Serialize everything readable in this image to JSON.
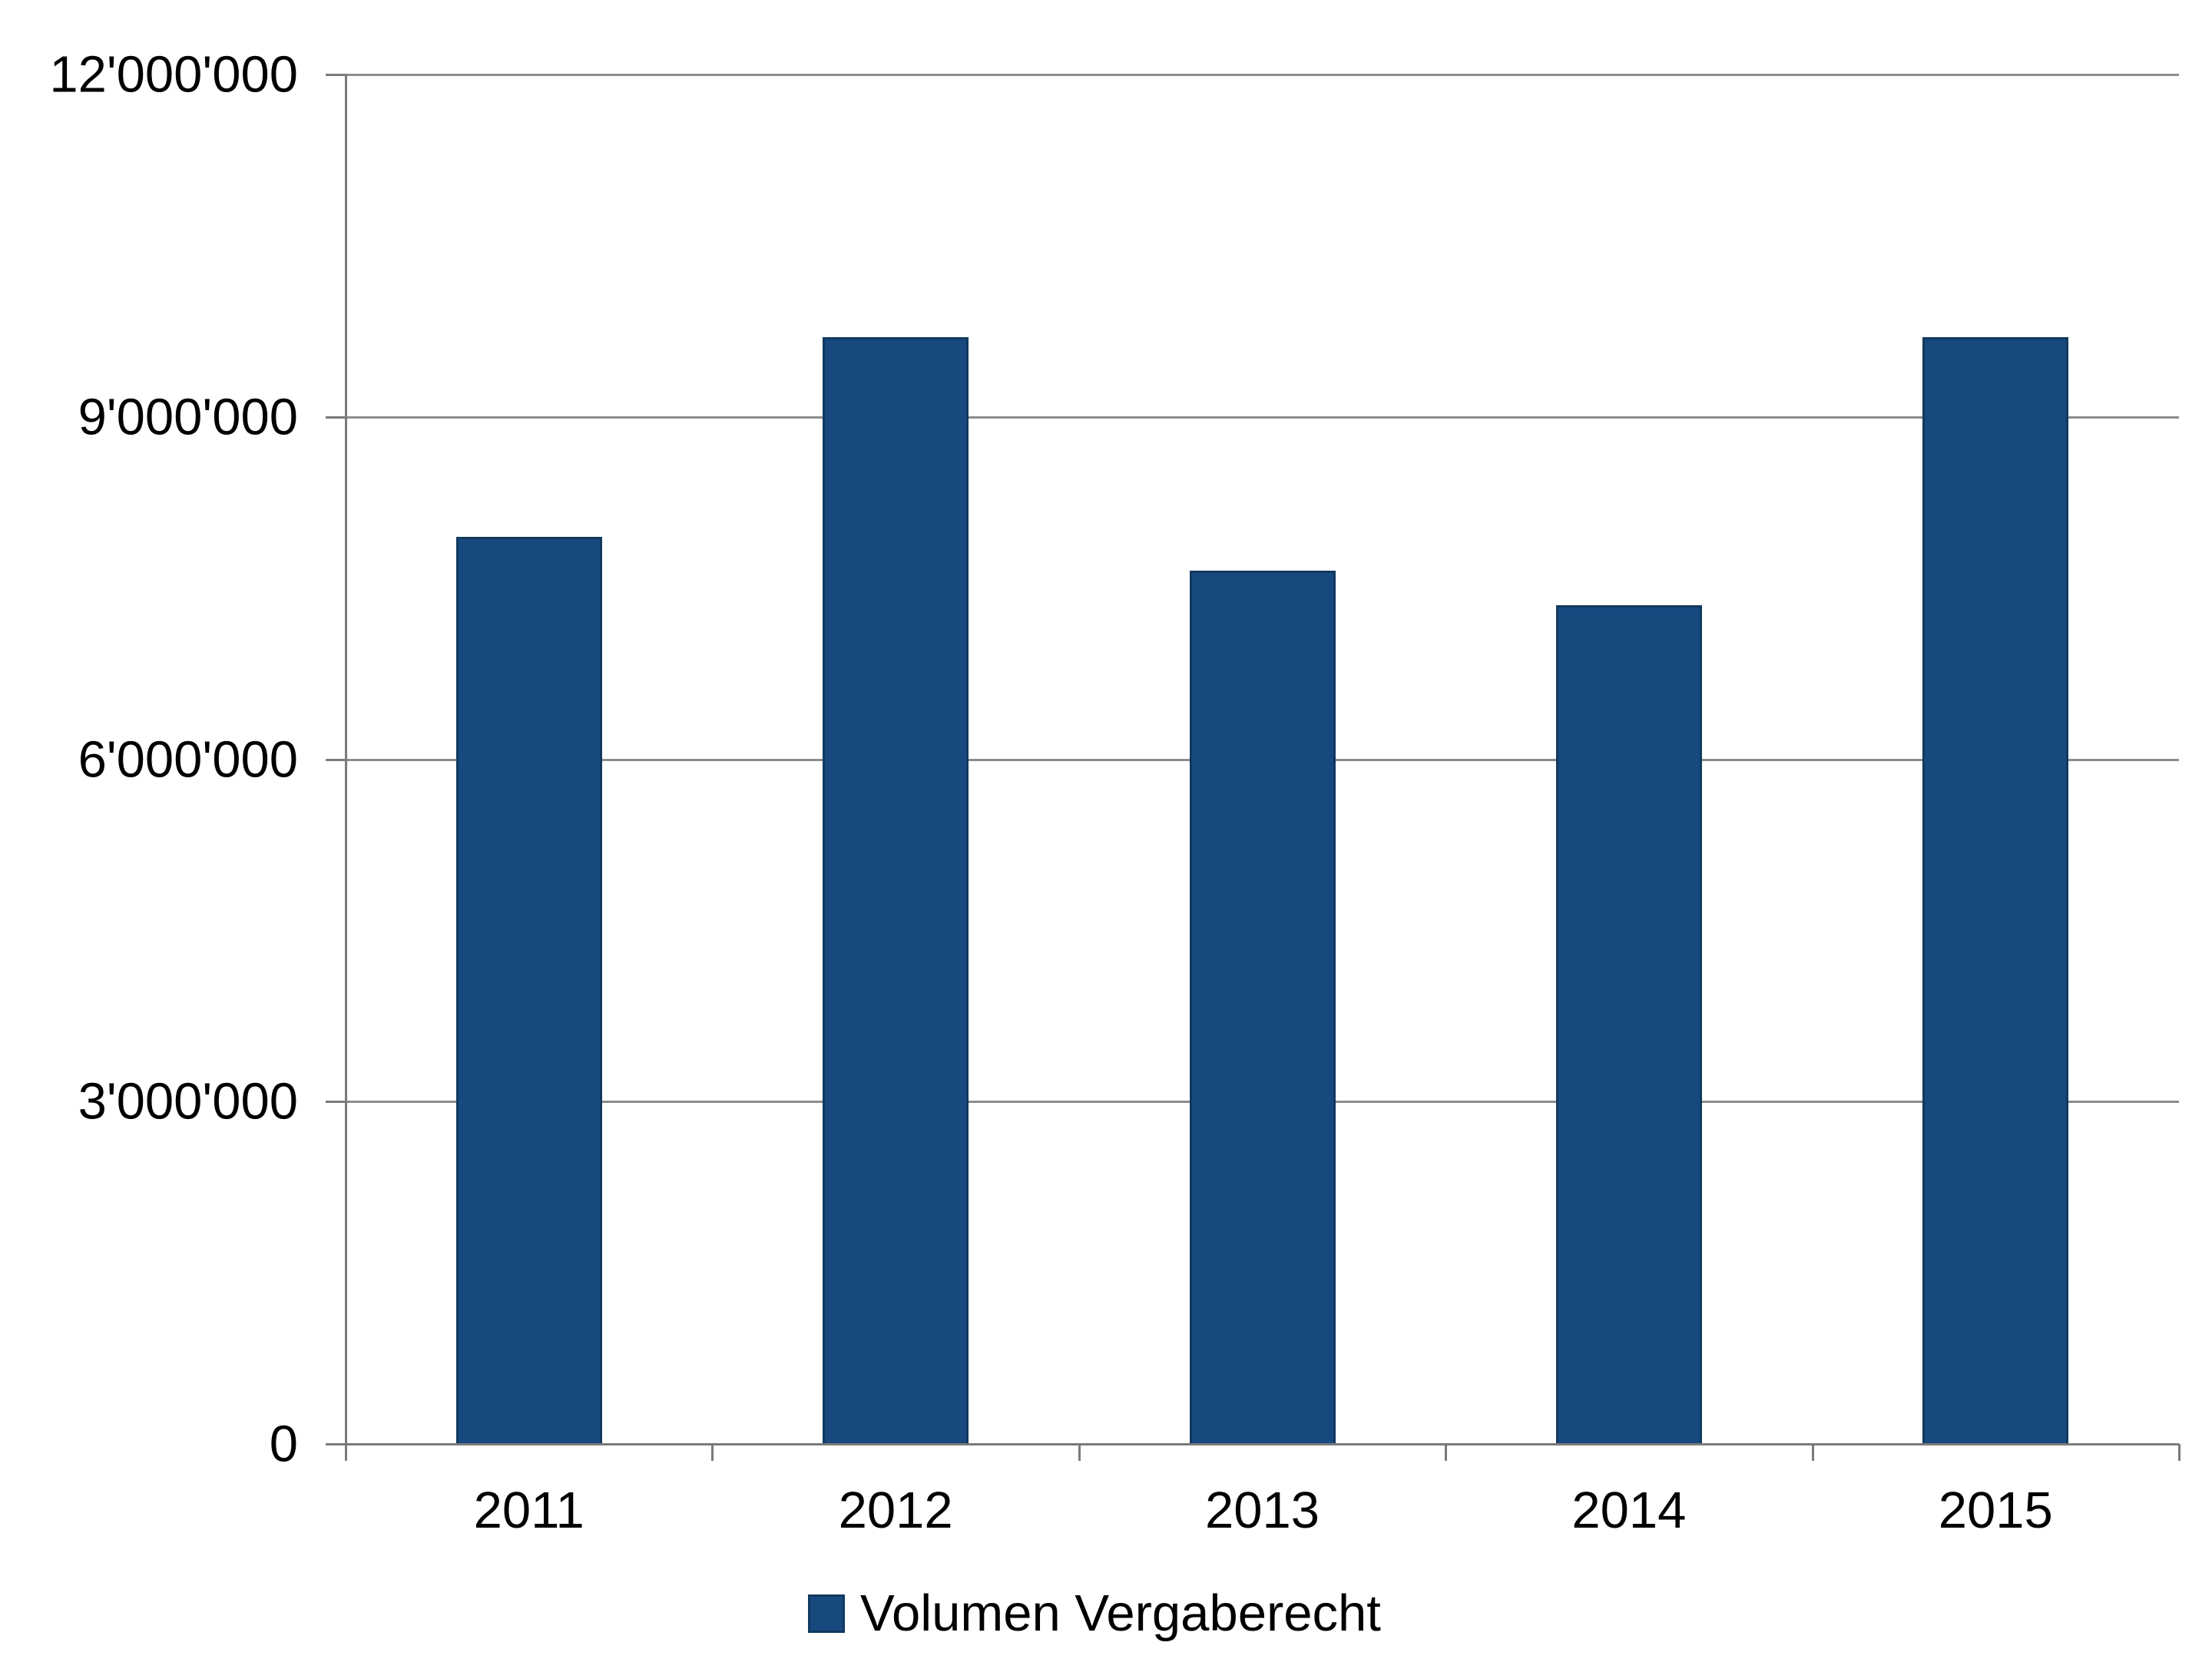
{
  "chart_data": {
    "type": "bar",
    "title": "",
    "categories": [
      "2011",
      "2012",
      "2013",
      "2014",
      "2015"
    ],
    "series": [
      {
        "name": "Volumen Vergaberecht",
        "values": [
          7950000,
          9700000,
          7650000,
          7350000,
          9700000
        ]
      }
    ],
    "xlabel": "",
    "ylabel": "",
    "ylim": [
      0,
      12000000
    ],
    "ytick_interval": 3000000,
    "yticks": [
      0,
      3000000,
      6000000,
      9000000,
      12000000
    ],
    "ytick_labels": [
      "0",
      "3'000'000",
      "6'000'000",
      "9'000'000",
      "12'000'000"
    ],
    "grid": true,
    "legend_position": "bottom-center",
    "legend": [
      {
        "label": "Volumen Vergaberecht",
        "marker": "square"
      }
    ],
    "colors": {
      "bar_fill": "#17497F",
      "bar_border": "#11395F",
      "gridline": "#8C8C8C",
      "axis": "#7A7A7A",
      "text": "#000000",
      "background": "#FFFFFF"
    }
  }
}
